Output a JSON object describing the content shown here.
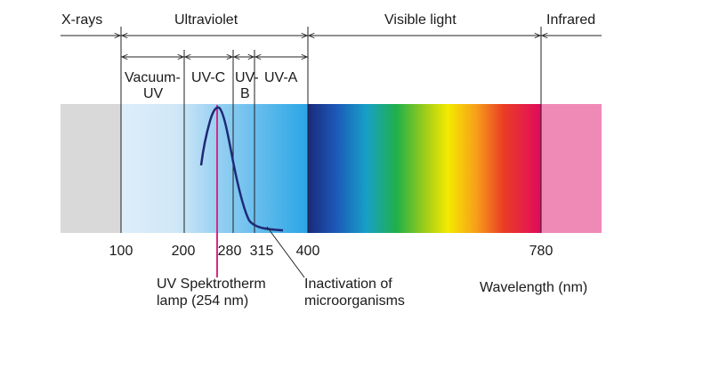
{
  "regions_top": {
    "xrays": "X-rays",
    "ultraviolet": "Ultraviolet",
    "visible": "Visible light",
    "infrared": "Infrared"
  },
  "uv_bands": {
    "vacuum_uv_line1": "Vacuum-",
    "vacuum_uv_line2": "UV",
    "uvc": "UV-C",
    "uvb_line1": "UV-",
    "uvb_line2": "B",
    "uva": "UV-A"
  },
  "ticks": [
    "100",
    "200",
    "280",
    "315",
    "400",
    "780"
  ],
  "tick_values_nm": [
    100,
    200,
    280,
    315,
    400,
    780
  ],
  "lamp_wavelength_nm": 254,
  "annotations": {
    "lamp_line1": "UV Spektrotherm",
    "lamp_line2": "lamp (254 nm)",
    "inactivation_line1": "Inactivation of",
    "inactivation_line2": "microorganisms"
  },
  "axis_label": "Wavelength (nm)",
  "colors": {
    "xray_band": "#d9d9da",
    "uv_band": "#a7d5ef",
    "infrared_band": "#ef8ab6",
    "lamp_line": "#d62a86",
    "curve": "#1f2a78",
    "lines": "#222222"
  }
}
